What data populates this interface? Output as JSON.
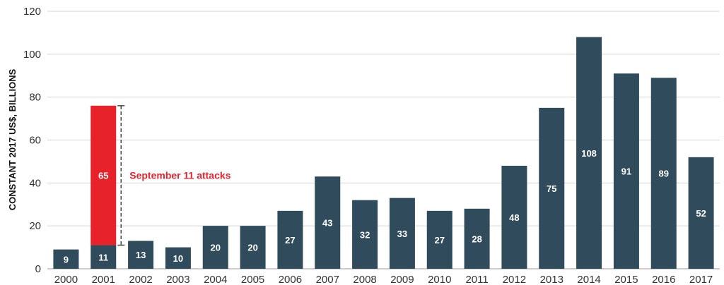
{
  "chart_data": {
    "type": "bar",
    "stacked": true,
    "categories": [
      "2000",
      "2001",
      "2002",
      "2003",
      "2004",
      "2005",
      "2006",
      "2007",
      "2008",
      "2009",
      "2010",
      "2011",
      "2012",
      "2013",
      "2014",
      "2015",
      "2016",
      "2017"
    ],
    "series": [
      {
        "name": "",
        "color": "#2f4b5c",
        "values": [
          9,
          11,
          13,
          10,
          20,
          20,
          27,
          43,
          32,
          33,
          27,
          28,
          48,
          75,
          108,
          91,
          89,
          52
        ]
      },
      {
        "name": "",
        "color": "#e8222b",
        "values": [
          0,
          65,
          0,
          0,
          0,
          0,
          0,
          0,
          0,
          0,
          0,
          0,
          0,
          0,
          0,
          0,
          0,
          0
        ]
      }
    ],
    "xlabel": "",
    "ylabel": "CONSTANT 2017 US$, BILLIONS",
    "ylim": [
      0,
      120
    ],
    "yticks": [
      0,
      20,
      40,
      60,
      80,
      100,
      120
    ],
    "grid": true,
    "annotation": {
      "text": "September 11 attacks",
      "category": "2001",
      "color": "#e8222b"
    }
  }
}
